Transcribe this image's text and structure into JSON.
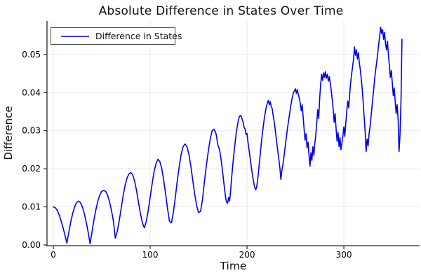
{
  "title": "Absolute Difference in States Over Time",
  "legend": {
    "label": "Difference in States"
  },
  "colors": {
    "line": "#0000ee",
    "grid": "#e8e8e8",
    "spine": "#2a2a2a",
    "text": "#000000",
    "legend_border": "#4d4d4d"
  },
  "chart_data": {
    "type": "line",
    "title": "Absolute Difference in States Over Time",
    "xlabel": "Time",
    "ylabel": "Difference",
    "xlim": [
      -6.5,
      378.2
    ],
    "ylim": [
      -0.0002,
      0.0588
    ],
    "grid": true,
    "legend_position": "top-left",
    "x_ticks": [
      0,
      100,
      200,
      300
    ],
    "x_tick_labels": [
      "0",
      "100",
      "200",
      "300"
    ],
    "y_ticks": [
      0.0,
      0.01,
      0.02,
      0.03,
      0.04,
      0.05
    ],
    "y_tick_labels": [
      "0.00",
      "0.01",
      "0.02",
      "0.03",
      "0.04",
      "0.05"
    ],
    "series": [
      {
        "name": "Difference in States",
        "color": "#0000ee",
        "points": [
          [
            0,
            0.01
          ],
          [
            2,
            0.0098
          ],
          [
            4,
            0.0091
          ],
          [
            6,
            0.0079
          ],
          [
            8,
            0.0064
          ],
          [
            10,
            0.0046
          ],
          [
            12,
            0.0026
          ],
          [
            14,
            0.0005
          ],
          [
            16,
            0.0033
          ],
          [
            18,
            0.006
          ],
          [
            20,
            0.0083
          ],
          [
            22,
            0.01
          ],
          [
            24,
            0.0111
          ],
          [
            26,
            0.0115
          ],
          [
            28,
            0.0111
          ],
          [
            30,
            0.01
          ],
          [
            32,
            0.0083
          ],
          [
            34,
            0.006
          ],
          [
            36,
            0.0033
          ],
          [
            38,
            0.0003
          ],
          [
            40,
            0.0035
          ],
          [
            42,
            0.0066
          ],
          [
            44,
            0.0093
          ],
          [
            46,
            0.0115
          ],
          [
            48,
            0.0131
          ],
          [
            50,
            0.0141
          ],
          [
            52,
            0.0143
          ],
          [
            54,
            0.0141
          ],
          [
            56,
            0.0131
          ],
          [
            58,
            0.0114
          ],
          [
            60,
            0.0091
          ],
          [
            62,
            0.0063
          ],
          [
            64,
            0.0018
          ],
          [
            66,
            0.0035
          ],
          [
            68,
            0.0062
          ],
          [
            70,
            0.0095
          ],
          [
            72,
            0.0128
          ],
          [
            74,
            0.0155
          ],
          [
            76,
            0.0175
          ],
          [
            78,
            0.0186
          ],
          [
            80,
            0.019
          ],
          [
            82,
            0.0184
          ],
          [
            84,
            0.0167
          ],
          [
            86,
            0.0142
          ],
          [
            88,
            0.0112
          ],
          [
            90,
            0.0082
          ],
          [
            92,
            0.0058
          ],
          [
            94,
            0.0045
          ],
          [
            96,
            0.0062
          ],
          [
            98,
            0.009
          ],
          [
            100,
            0.0125
          ],
          [
            102,
            0.016
          ],
          [
            104,
            0.0192
          ],
          [
            106,
            0.0213
          ],
          [
            108,
            0.0225
          ],
          [
            110,
            0.0219
          ],
          [
            112,
            0.02
          ],
          [
            114,
            0.017
          ],
          [
            116,
            0.0133
          ],
          [
            118,
            0.0095
          ],
          [
            120,
            0.0062
          ],
          [
            122,
            0.0058
          ],
          [
            124,
            0.0085
          ],
          [
            126,
            0.0125
          ],
          [
            128,
            0.0168
          ],
          [
            130,
            0.0205
          ],
          [
            132,
            0.0238
          ],
          [
            134,
            0.0258
          ],
          [
            136,
            0.0265
          ],
          [
            138,
            0.0258
          ],
          [
            140,
            0.0238
          ],
          [
            142,
            0.0207
          ],
          [
            144,
            0.017
          ],
          [
            146,
            0.0133
          ],
          [
            148,
            0.0103
          ],
          [
            150,
            0.0085
          ],
          [
            152,
            0.0088
          ],
          [
            154,
            0.0118
          ],
          [
            156,
            0.0165
          ],
          [
            158,
            0.0208
          ],
          [
            160,
            0.0245
          ],
          [
            162,
            0.0278
          ],
          [
            164,
            0.03
          ],
          [
            166,
            0.0304
          ],
          [
            168,
            0.0292
          ],
          [
            170,
            0.0262
          ],
          [
            171,
            0.0255
          ],
          [
            172,
            0.0245
          ],
          [
            173,
            0.0228
          ],
          [
            174,
            0.021
          ],
          [
            175,
            0.0188
          ],
          [
            176,
            0.0165
          ],
          [
            177,
            0.0143
          ],
          [
            178,
            0.0123
          ],
          [
            179,
            0.0112
          ],
          [
            180,
            0.011
          ],
          [
            181,
            0.0125
          ],
          [
            182,
            0.0115
          ],
          [
            183,
            0.014
          ],
          [
            184,
            0.0172
          ],
          [
            185,
            0.02
          ],
          [
            186,
            0.0228
          ],
          [
            187,
            0.0252
          ],
          [
            188,
            0.0275
          ],
          [
            189,
            0.0296
          ],
          [
            190,
            0.0312
          ],
          [
            191,
            0.0326
          ],
          [
            192,
            0.0336
          ],
          [
            193,
            0.034
          ],
          [
            194,
            0.0338
          ],
          [
            195,
            0.033
          ],
          [
            196,
            0.0322
          ],
          [
            197,
            0.0308
          ],
          [
            198,
            0.0305
          ],
          [
            199,
            0.029
          ],
          [
            200,
            0.0293
          ],
          [
            201,
            0.027
          ],
          [
            202,
            0.0252
          ],
          [
            203,
            0.0232
          ],
          [
            204,
            0.0212
          ],
          [
            205,
            0.0195
          ],
          [
            206,
            0.0178
          ],
          [
            207,
            0.0163
          ],
          [
            208,
            0.015
          ],
          [
            209,
            0.0145
          ],
          [
            210,
            0.0152
          ],
          [
            211,
            0.017
          ],
          [
            212,
            0.0195
          ],
          [
            213,
            0.0222
          ],
          [
            214,
            0.0248
          ],
          [
            215,
            0.0272
          ],
          [
            216,
            0.0295
          ],
          [
            217,
            0.0315
          ],
          [
            218,
            0.0335
          ],
          [
            219,
            0.035
          ],
          [
            220,
            0.0363
          ],
          [
            221,
            0.0372
          ],
          [
            222,
            0.038
          ],
          [
            223,
            0.0368
          ],
          [
            224,
            0.0376
          ],
          [
            225,
            0.0364
          ],
          [
            226,
            0.0358
          ],
          [
            227,
            0.034
          ],
          [
            228,
            0.0325
          ],
          [
            229,
            0.0305
          ],
          [
            230,
            0.0285
          ],
          [
            231,
            0.0262
          ],
          [
            232,
            0.0242
          ],
          [
            233,
            0.0222
          ],
          [
            234,
            0.02
          ],
          [
            235,
            0.0172
          ],
          [
            236,
            0.0195
          ],
          [
            237,
            0.021
          ],
          [
            238,
            0.0228
          ],
          [
            239,
            0.025
          ],
          [
            240,
            0.027
          ],
          [
            241,
            0.029
          ],
          [
            242,
            0.031
          ],
          [
            243,
            0.0328
          ],
          [
            244,
            0.0345
          ],
          [
            245,
            0.0362
          ],
          [
            246,
            0.0377
          ],
          [
            247,
            0.039
          ],
          [
            248,
            0.04
          ],
          [
            249,
            0.0405
          ],
          [
            250,
            0.041
          ],
          [
            251,
            0.0398
          ],
          [
            252,
            0.0408
          ],
          [
            253,
            0.0395
          ],
          [
            254,
            0.0385
          ],
          [
            255,
            0.0372
          ],
          [
            256,
            0.0352
          ],
          [
            257,
            0.0368
          ],
          [
            258,
            0.0335
          ],
          [
            259,
            0.0302
          ],
          [
            260,
            0.0275
          ],
          [
            261,
            0.0292
          ],
          [
            262,
            0.0255
          ],
          [
            263,
            0.027
          ],
          [
            264,
            0.0235
          ],
          [
            265,
            0.0207
          ],
          [
            266,
            0.0242
          ],
          [
            267,
            0.0222
          ],
          [
            268,
            0.0258
          ],
          [
            269,
            0.0235
          ],
          [
            270,
            0.0268
          ],
          [
            271,
            0.0288
          ],
          [
            272,
            0.032
          ],
          [
            273,
            0.0355
          ],
          [
            274,
            0.0332
          ],
          [
            275,
            0.0385
          ],
          [
            276,
            0.042
          ],
          [
            277,
            0.0448
          ],
          [
            278,
            0.0432
          ],
          [
            279,
            0.0452
          ],
          [
            280,
            0.044
          ],
          [
            281,
            0.0455
          ],
          [
            282,
            0.0438
          ],
          [
            283,
            0.0448
          ],
          [
            284,
            0.043
          ],
          [
            285,
            0.0442
          ],
          [
            286,
            0.0425
          ],
          [
            287,
            0.0405
          ],
          [
            288,
            0.0382
          ],
          [
            289,
            0.0355
          ],
          [
            290,
            0.0322
          ],
          [
            291,
            0.0345
          ],
          [
            292,
            0.0305
          ],
          [
            293,
            0.0272
          ],
          [
            294,
            0.0295
          ],
          [
            295,
            0.0258
          ],
          [
            296,
            0.0282
          ],
          [
            297,
            0.025
          ],
          [
            298,
            0.0268
          ],
          [
            299,
            0.0288
          ],
          [
            300,
            0.031
          ],
          [
            301,
            0.0285
          ],
          [
            302,
            0.032
          ],
          [
            303,
            0.035
          ],
          [
            304,
            0.0378
          ],
          [
            305,
            0.036
          ],
          [
            306,
            0.0395
          ],
          [
            307,
            0.0425
          ],
          [
            308,
            0.0448
          ],
          [
            309,
            0.0468
          ],
          [
            310,
            0.0488
          ],
          [
            311,
            0.052
          ],
          [
            312,
            0.0498
          ],
          [
            313,
            0.0512
          ],
          [
            314,
            0.0488
          ],
          [
            315,
            0.0505
          ],
          [
            316,
            0.0478
          ],
          [
            317,
            0.046
          ],
          [
            318,
            0.0435
          ],
          [
            319,
            0.0408
          ],
          [
            320,
            0.0372
          ],
          [
            321,
            0.0335
          ],
          [
            322,
            0.0298
          ],
          [
            323,
            0.0245
          ],
          [
            324,
            0.0278
          ],
          [
            325,
            0.026
          ],
          [
            326,
            0.029
          ],
          [
            327,
            0.031
          ],
          [
            328,
            0.0335
          ],
          [
            329,
            0.0362
          ],
          [
            330,
            0.0388
          ],
          [
            331,
            0.0415
          ],
          [
            332,
            0.044
          ],
          [
            333,
            0.0462
          ],
          [
            334,
            0.0482
          ],
          [
            335,
            0.0505
          ],
          [
            336,
            0.0528
          ],
          [
            337,
            0.0548
          ],
          [
            338,
            0.0572
          ],
          [
            339,
            0.0555
          ],
          [
            340,
            0.0565
          ],
          [
            341,
            0.054
          ],
          [
            342,
            0.0558
          ],
          [
            343,
            0.053
          ],
          [
            344,
            0.0512
          ],
          [
            345,
            0.0535
          ],
          [
            346,
            0.0498
          ],
          [
            347,
            0.0472
          ],
          [
            348,
            0.044
          ],
          [
            349,
            0.0458
          ],
          [
            350,
            0.0425
          ],
          [
            351,
            0.0392
          ],
          [
            352,
            0.0412
          ],
          [
            353,
            0.0378
          ],
          [
            354,
            0.0345
          ],
          [
            355,
            0.0368
          ],
          [
            356,
            0.033
          ],
          [
            357,
            0.0245
          ],
          [
            358,
            0.029
          ],
          [
            359,
            0.038
          ],
          [
            360,
            0.054
          ]
        ]
      }
    ]
  }
}
